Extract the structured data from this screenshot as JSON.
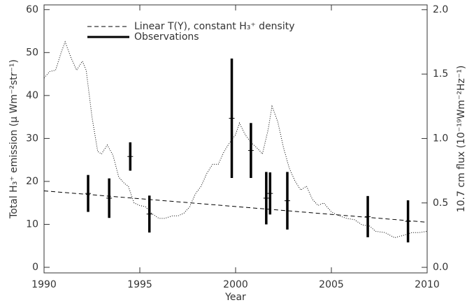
{
  "chart_data": {
    "type": "line",
    "xlabel": "Year",
    "ylabel": "Total H₃⁺ emission (μ Wm⁻²str⁻¹)",
    "y2label": "10.7 cm flux (10⁻¹⁹Wm⁻²Hz⁻¹)",
    "xlim": [
      1990,
      2010
    ],
    "xticks": [
      1990,
      1995,
      2000,
      2005,
      2010
    ],
    "ylim": [
      -1.3,
      61.1
    ],
    "yticks": [
      0,
      10,
      20,
      30,
      40,
      50,
      60
    ],
    "y2lim": [
      -0.043,
      2.037
    ],
    "y2ticks": [
      {
        "value": 0,
        "label": "0.0"
      },
      {
        "value": 0.5,
        "label": "0.5"
      },
      {
        "value": 1,
        "label": "1.0"
      },
      {
        "value": 1.5,
        "label": "1.5"
      },
      {
        "value": 2,
        "label": "2.0"
      }
    ],
    "legend": "upper left",
    "series": [
      {
        "name": "Linear T(Y), constant H₃⁺ density",
        "kind": "dashed",
        "color": "#000000",
        "x": [
          1990,
          2010
        ],
        "values": [
          17.8,
          10.5
        ]
      },
      {
        "name": "Observations",
        "kind": "errorbar",
        "color": "#000000",
        "x": [
          1992.3,
          1993.4,
          1994.5,
          1995.5,
          1999.8,
          2000.8,
          2001.6,
          2001.8,
          2002.7,
          2006.9,
          2009.0
        ],
        "values": [
          17.2,
          16.1,
          25.8,
          12.4,
          34.7,
          27.2,
          16.1,
          17.2,
          15.5,
          11.8,
          10.7
        ],
        "errors": [
          4.3,
          4.6,
          3.3,
          4.3,
          13.9,
          6.4,
          6.1,
          4.9,
          6.7,
          4.8,
          4.9
        ]
      },
      {
        "kind": "dotted",
        "axis": "y2",
        "color": "#000000",
        "x": [
          1990.0,
          1990.3,
          1990.6,
          1990.9,
          1991.1,
          1991.4,
          1991.7,
          1992.0,
          1992.2,
          1992.5,
          1992.8,
          1993.0,
          1993.3,
          1993.6,
          1993.9,
          1994.2,
          1994.4,
          1994.7,
          1995.0,
          1995.3,
          1995.6,
          1996.0,
          1996.3,
          1996.7,
          1997.0,
          1997.3,
          1997.6,
          1997.9,
          1998.2,
          1998.5,
          1998.8,
          1999.1,
          1999.4,
          1999.7,
          2000.0,
          2000.2,
          2000.5,
          2000.8,
          2001.1,
          2001.4,
          2001.7,
          2001.9,
          2002.2,
          2002.5,
          2002.8,
          2003.1,
          2003.4,
          2003.7,
          2004.0,
          2004.3,
          2004.6,
          2005.0,
          2005.4,
          2005.8,
          2006.2,
          2006.6,
          2007.0,
          2007.3,
          2007.8,
          2008.3,
          2008.8,
          2009.2,
          2009.6,
          2010.0
        ],
        "values": [
          1.47,
          1.52,
          1.53,
          1.67,
          1.75,
          1.63,
          1.53,
          1.6,
          1.53,
          1.17,
          0.9,
          0.88,
          0.95,
          0.87,
          0.7,
          0.65,
          0.63,
          0.5,
          0.48,
          0.47,
          0.42,
          0.38,
          0.38,
          0.4,
          0.4,
          0.42,
          0.47,
          0.57,
          0.63,
          0.73,
          0.8,
          0.8,
          0.9,
          0.97,
          1.03,
          1.12,
          1.03,
          0.97,
          0.93,
          0.88,
          1.07,
          1.25,
          1.13,
          0.93,
          0.77,
          0.67,
          0.6,
          0.63,
          0.53,
          0.48,
          0.5,
          0.43,
          0.4,
          0.38,
          0.37,
          0.33,
          0.32,
          0.28,
          0.27,
          0.23,
          0.25,
          0.27,
          0.27,
          0.28
        ]
      }
    ]
  }
}
